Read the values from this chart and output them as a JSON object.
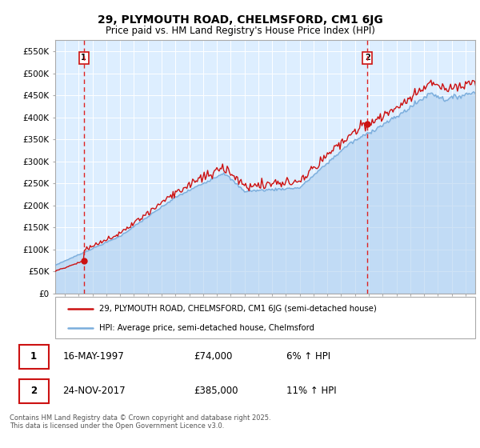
{
  "title": "29, PLYMOUTH ROAD, CHELMSFORD, CM1 6JG",
  "subtitle": "Price paid vs. HM Land Registry's House Price Index (HPI)",
  "ylim": [
    0,
    575000
  ],
  "yticks": [
    0,
    50000,
    100000,
    150000,
    200000,
    250000,
    300000,
    350000,
    400000,
    450000,
    500000,
    550000
  ],
  "ytick_labels": [
    "£0",
    "£50K",
    "£100K",
    "£150K",
    "£200K",
    "£250K",
    "£300K",
    "£350K",
    "£400K",
    "£450K",
    "£500K",
    "£550K"
  ],
  "bg_color": "#ddeeff",
  "legend_label_red": "29, PLYMOUTH ROAD, CHELMSFORD, CM1 6JG (semi-detached house)",
  "legend_label_blue": "HPI: Average price, semi-detached house, Chelmsford",
  "sale1_date": "16-MAY-1997",
  "sale1_price": "£74,000",
  "sale1_hpi": "6% ↑ HPI",
  "sale2_date": "24-NOV-2017",
  "sale2_price": "£385,000",
  "sale2_hpi": "11% ↑ HPI",
  "footer": "Contains HM Land Registry data © Crown copyright and database right 2025.\nThis data is licensed under the Open Government Licence v3.0.",
  "marker1_x": 1997.37,
  "marker1_y": 74000,
  "marker2_x": 2017.9,
  "marker2_y": 385000,
  "vline1_x": 1997.37,
  "vline2_x": 2017.9,
  "red_color": "#cc1111",
  "blue_color": "#7aaddc",
  "blue_fill": "#aaccee",
  "vline_color": "#dd2222",
  "xtick_start": 1996,
  "xtick_end": 2025,
  "xlim_left": 1995.3,
  "xlim_right": 2025.7
}
